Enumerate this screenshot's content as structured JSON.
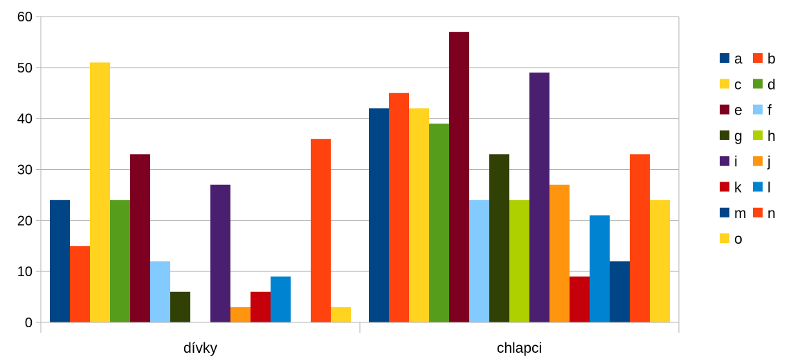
{
  "chart_data": {
    "type": "bar",
    "title": "",
    "xlabel": "",
    "ylabel": "",
    "ylim": [
      0,
      60
    ],
    "yticks": [
      0,
      10,
      20,
      30,
      40,
      50,
      60
    ],
    "grid": true,
    "legend_position": "right",
    "categories": [
      "dívky",
      "chlapci"
    ],
    "series": [
      {
        "name": "a",
        "color": "#004586",
        "values": [
          24,
          42
        ]
      },
      {
        "name": "b",
        "color": "#ff420e",
        "values": [
          15,
          45
        ]
      },
      {
        "name": "c",
        "color": "#ffd320",
        "values": [
          51,
          42
        ]
      },
      {
        "name": "d",
        "color": "#579d1c",
        "values": [
          24,
          39
        ]
      },
      {
        "name": "e",
        "color": "#7e0021",
        "values": [
          33,
          57
        ]
      },
      {
        "name": "f",
        "color": "#83caff",
        "values": [
          12,
          24
        ]
      },
      {
        "name": "g",
        "color": "#314004",
        "values": [
          6,
          33
        ]
      },
      {
        "name": "h",
        "color": "#aecf00",
        "values": [
          0,
          24
        ]
      },
      {
        "name": "i",
        "color": "#4b1f6f",
        "values": [
          27,
          49
        ]
      },
      {
        "name": "j",
        "color": "#ff950e",
        "values": [
          3,
          27
        ]
      },
      {
        "name": "k",
        "color": "#c5000b",
        "values": [
          6,
          9
        ]
      },
      {
        "name": "l",
        "color": "#0084d1",
        "values": [
          9,
          21
        ]
      },
      {
        "name": "m",
        "color": "#004586",
        "values": [
          0,
          12
        ]
      },
      {
        "name": "n",
        "color": "#ff420e",
        "values": [
          36,
          33
        ]
      },
      {
        "name": "o",
        "color": "#ffd320",
        "values": [
          3,
          24
        ]
      }
    ]
  }
}
